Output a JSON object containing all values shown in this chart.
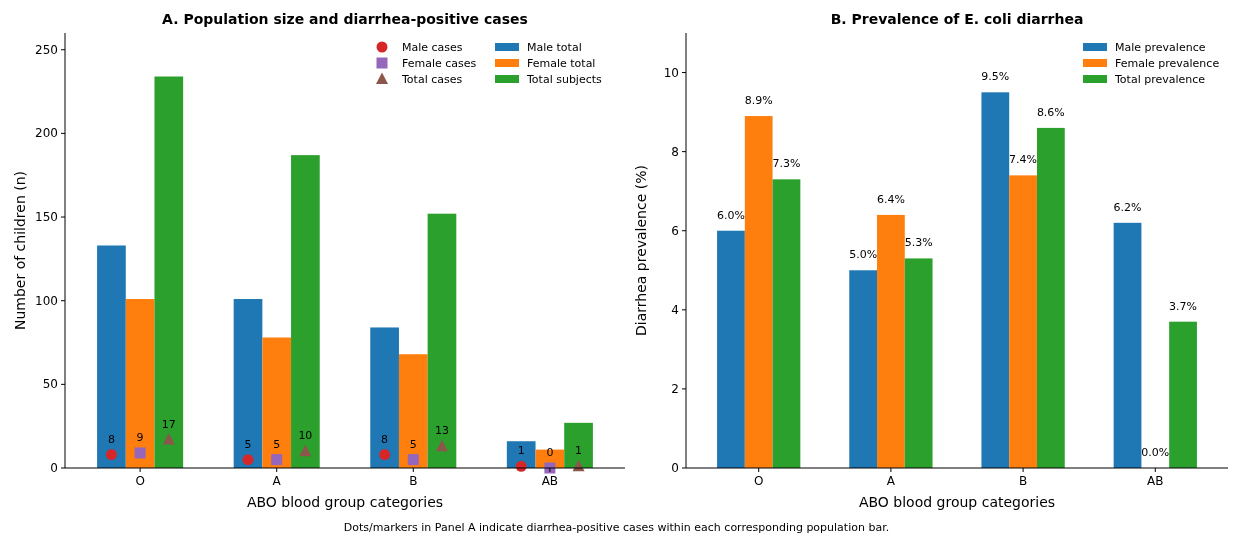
{
  "chart_data": [
    {
      "type": "bar",
      "title": "A. Population size and diarrhea-positive cases",
      "xlabel": "ABO blood group categories",
      "ylabel": "Number of children (n)",
      "categories": [
        "O",
        "A",
        "B",
        "AB"
      ],
      "ylim": [
        0,
        260
      ],
      "yticks": [
        0,
        50,
        100,
        150,
        200,
        250
      ],
      "legend": "top right",
      "annotations": [
        "Dots/markers in Panel A indicate diarrhea-positive cases within each corresponding population bar."
      ],
      "series": [
        {
          "name": "Male cases",
          "type": "scatter",
          "marker": "circle",
          "color": "#d62728",
          "x": [
            "O",
            "A",
            "B",
            "AB"
          ],
          "values": [
            8,
            5,
            8,
            1
          ],
          "value_labels": [
            "8",
            "5",
            "8",
            "1"
          ]
        },
        {
          "name": "Female cases",
          "type": "scatter",
          "marker": "square",
          "color": "#9467bd",
          "x": [
            "O",
            "A",
            "B",
            "AB"
          ],
          "values": [
            9,
            5,
            5,
            0
          ],
          "value_labels": [
            "9",
            "5",
            "5",
            "0"
          ]
        },
        {
          "name": "Total cases",
          "type": "scatter",
          "marker": "triangle",
          "color": "#8c564b",
          "x": [
            "O",
            "A",
            "B",
            "AB"
          ],
          "values": [
            17,
            10,
            13,
            1
          ],
          "value_labels": [
            "17",
            "10",
            "13",
            "1"
          ]
        },
        {
          "name": "Male total",
          "color": "#1f77b4",
          "values": [
            133,
            101,
            84,
            16
          ]
        },
        {
          "name": "Female total",
          "color": "#ff7f0e",
          "values": [
            101,
            78,
            68,
            11
          ]
        },
        {
          "name": "Total subjects",
          "color": "#2ca02c",
          "values": [
            234,
            187,
            152,
            27
          ]
        }
      ]
    },
    {
      "type": "bar",
      "title": "B. Prevalence of E. coli diarrhea",
      "xlabel": "ABO blood group categories",
      "ylabel": "Diarrhea prevalence (%)",
      "categories": [
        "O",
        "A",
        "B",
        "AB"
      ],
      "ylim": [
        0,
        11
      ],
      "yticks": [
        0,
        2,
        4,
        6,
        8,
        10
      ],
      "legend": "top right",
      "series": [
        {
          "name": "Male prevalence",
          "color": "#1f77b4",
          "values": [
            6.0,
            5.0,
            9.5,
            6.2
          ],
          "value_labels": [
            "6.0%",
            "5.0%",
            "9.5%",
            "6.2%"
          ]
        },
        {
          "name": "Female prevalence",
          "color": "#ff7f0e",
          "values": [
            8.9,
            6.4,
            7.4,
            0.0
          ],
          "value_labels": [
            "8.9%",
            "6.4%",
            "7.4%",
            "0.0%"
          ]
        },
        {
          "name": "Total prevalence",
          "color": "#2ca02c",
          "values": [
            7.3,
            5.3,
            8.6,
            3.7
          ],
          "value_labels": [
            "7.3%",
            "5.3%",
            "8.6%",
            "3.7%"
          ]
        }
      ]
    }
  ]
}
